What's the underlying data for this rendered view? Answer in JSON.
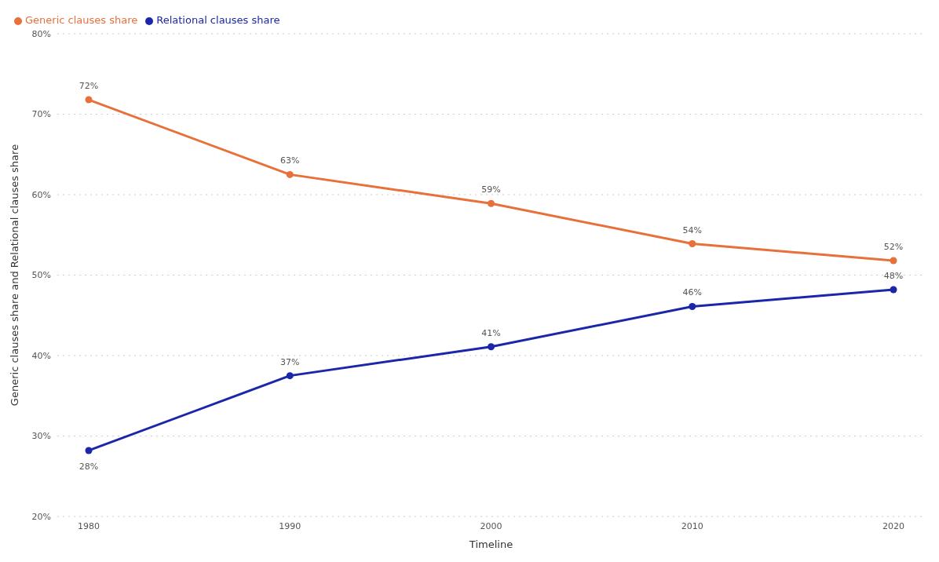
{
  "chart_data": {
    "type": "line",
    "xlabel": "Timeline",
    "ylabel": "Generic clauses share and Relational clauses share",
    "categories": [
      "1980",
      "1990",
      "2000",
      "2010",
      "2020"
    ],
    "series": [
      {
        "name": "Generic clauses share",
        "color": "#e8703a",
        "values": [
          71.8,
          62.5,
          58.9,
          53.9,
          51.8
        ],
        "value_labels": [
          "72%",
          "63%",
          "59%",
          "54%",
          "52%"
        ]
      },
      {
        "name": "Relational clauses share",
        "color": "#1b27a8",
        "values": [
          28.2,
          37.5,
          41.1,
          46.1,
          48.2
        ],
        "value_labels": [
          "28%",
          "37%",
          "41%",
          "46%",
          "48%"
        ]
      }
    ],
    "ylim": [
      20,
      80
    ],
    "yticks": [
      {
        "value": 20,
        "label": "20%"
      },
      {
        "value": 30,
        "label": "30%"
      },
      {
        "value": 40,
        "label": "40%"
      },
      {
        "value": 50,
        "label": "50%"
      },
      {
        "value": 60,
        "label": "60%"
      },
      {
        "value": 70,
        "label": "70%"
      },
      {
        "value": 80,
        "label": "80%"
      }
    ],
    "grid": "y",
    "legend": "top left",
    "marker": "circle",
    "line_style": "solid"
  }
}
